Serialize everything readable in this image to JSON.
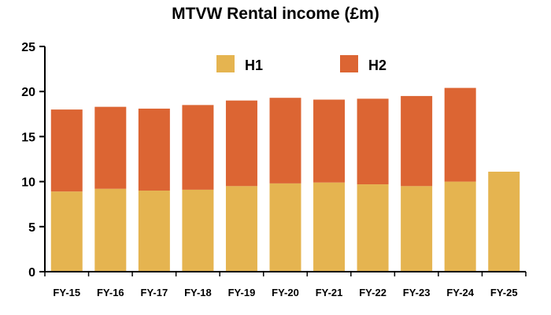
{
  "chart_data": {
    "type": "bar",
    "stacked": true,
    "title": "MTVW Rental income (£m)",
    "xlabel": "",
    "ylabel": "",
    "ylim": [
      0,
      25
    ],
    "yticks": [
      0,
      5,
      10,
      15,
      20,
      25
    ],
    "grid": false,
    "legend_position": "top",
    "categories": [
      "FY-15",
      "FY-16",
      "FY-17",
      "FY-18",
      "FY-19",
      "FY-20",
      "FY-21",
      "FY-22",
      "FY-23",
      "FY-24",
      "FY-25"
    ],
    "series": [
      {
        "name": "H1",
        "color": "#E5B450",
        "values": [
          8.9,
          9.2,
          9.0,
          9.1,
          9.5,
          9.8,
          9.9,
          9.7,
          9.5,
          10.0,
          11.1
        ]
      },
      {
        "name": "H2",
        "color": "#DC6533",
        "values": [
          9.1,
          9.1,
          9.1,
          9.4,
          9.5,
          9.5,
          9.2,
          9.5,
          10.0,
          10.4,
          null
        ]
      }
    ]
  }
}
